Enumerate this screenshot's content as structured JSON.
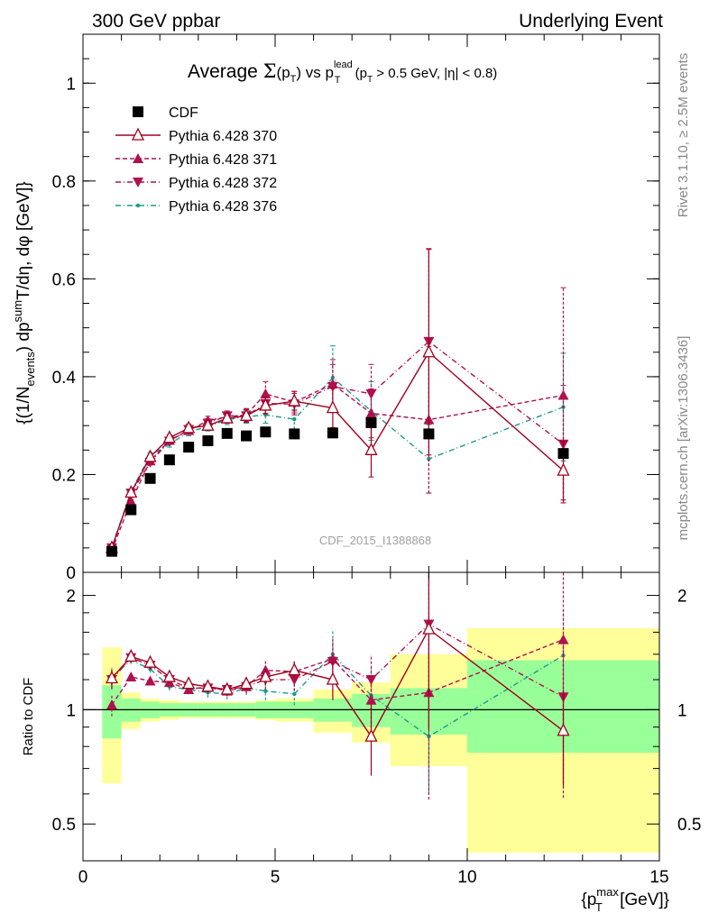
{
  "header": {
    "left": "300 GeV ppbar",
    "right": "Underlying Event"
  },
  "title": {
    "prefix": "Average ",
    "sigma": "Σ",
    "p_open": "(p",
    "T_sub": "T",
    "p_close": ")",
    "vs": " vs p",
    "lead_sup": "lead",
    "T_sub2": "T",
    "cut_open": " (p",
    "T_sub3": "T",
    "cut_rest": " > 0.5 GeV, |η| < 0.8)"
  },
  "watermark": "CDF_2015_I1388868",
  "side_top": "Rivet 3.1.10, ≥ 2.5M events",
  "side_bottom": "mcplots.cern.ch [arXiv:1306.3436]",
  "ylabel_main": "{(1/Nevents) dpsumT/dη, dφ [GeV]}",
  "ylabel_main_parts": {
    "open": "{(1/N",
    "events": "events",
    "close": ") dp",
    "sum": "sum",
    "T": "T",
    "rest": "/dη, dφ [GeV]}"
  },
  "ylabel_ratio": "Ratio to CDF",
  "xlabel_parts": {
    "open": "{p",
    "max": "max",
    "T": "T",
    "rest": " [GeV]}"
  },
  "legend": [
    {
      "label": "CDF",
      "marker": "square",
      "color": "#000000",
      "dash": ""
    },
    {
      "label": "Pythia 6.428 370",
      "marker": "triangle-open",
      "color": "#a0001e",
      "dash": ""
    },
    {
      "label": "Pythia 6.428 371",
      "marker": "triangle-up",
      "color": "#b0104e",
      "dash": "5,3"
    },
    {
      "label": "Pythia 6.428 372",
      "marker": "triangle-down",
      "color": "#b0104e",
      "dash": "6,3,1,3"
    },
    {
      "label": "Pythia 6.428 376",
      "marker": "dot",
      "color": "#1a9a8a",
      "dash": "6,3,1,3"
    }
  ],
  "chart_data": {
    "type": "line",
    "x": [
      0.75,
      1.25,
      1.75,
      2.25,
      2.75,
      3.25,
      3.75,
      4.25,
      4.75,
      5.5,
      6.5,
      7.5,
      9.0,
      12.5
    ],
    "xlim": [
      0,
      15
    ],
    "main_ylim": [
      0,
      1.1
    ],
    "main_yticks": [
      0,
      0.2,
      0.4,
      0.6,
      0.8,
      1
    ],
    "main_yticklabels": [
      "0",
      "0.2",
      "0.4",
      "0.6",
      "0.8",
      "1"
    ],
    "ratio_ylim": [
      0.4,
      2.3
    ],
    "ratio_log": true,
    "ratio_yticks": [
      0.5,
      1,
      2
    ],
    "ratio_yticklabels": [
      "0.5",
      "1",
      "2"
    ],
    "xticks": [
      0,
      5,
      10,
      15
    ],
    "xticklabels": [
      "0",
      "5",
      "10",
      "15"
    ],
    "data": {
      "name": "CDF",
      "values": [
        0.043,
        0.128,
        0.192,
        0.23,
        0.256,
        0.269,
        0.284,
        0.279,
        0.287,
        0.283,
        0.285,
        0.306,
        0.283,
        0.243
      ]
    },
    "series": [
      {
        "name": "Pythia 6.428 370",
        "values": [
          0.05,
          0.163,
          0.236,
          0.275,
          0.295,
          0.3,
          0.315,
          0.32,
          0.341,
          0.35,
          0.336,
          0.25,
          0.45,
          0.208
        ],
        "errors": [
          0.003,
          0.004,
          0.005,
          0.006,
          0.008,
          0.009,
          0.01,
          0.013,
          0.017,
          0.02,
          0.04,
          0.055,
          0.21,
          0.06
        ],
        "ratio": [
          1.21,
          1.38,
          1.33,
          1.22,
          1.17,
          1.15,
          1.13,
          1.17,
          1.22,
          1.27,
          1.2,
          0.85,
          1.63,
          0.88
        ]
      },
      {
        "name": "Pythia 6.428 371",
        "values": [
          0.045,
          0.145,
          0.228,
          0.27,
          0.29,
          0.31,
          0.318,
          0.322,
          0.365,
          0.348,
          0.385,
          0.325,
          0.312,
          0.362
        ],
        "errors": [
          0.003,
          0.004,
          0.005,
          0.006,
          0.008,
          0.009,
          0.01,
          0.013,
          0.025,
          0.022,
          0.05,
          0.05,
          0.15,
          0.22
        ],
        "ratio": [
          1.03,
          1.22,
          1.19,
          1.18,
          1.13,
          1.15,
          1.12,
          1.15,
          1.27,
          1.26,
          1.36,
          1.06,
          1.11,
          1.53
        ]
      },
      {
        "name": "Pythia 6.428 372",
        "values": [
          0.05,
          0.162,
          0.225,
          0.268,
          0.292,
          0.305,
          0.32,
          0.32,
          0.345,
          0.344,
          0.38,
          0.365,
          0.472,
          0.262
        ],
        "errors": [
          0.003,
          0.004,
          0.005,
          0.006,
          0.008,
          0.009,
          0.01,
          0.013,
          0.02,
          0.022,
          0.045,
          0.06,
          0.19,
          0.12
        ],
        "ratio": [
          1.2,
          1.37,
          1.31,
          1.2,
          1.14,
          1.14,
          1.13,
          1.15,
          1.2,
          1.2,
          1.34,
          1.2,
          1.68,
          1.08
        ]
      },
      {
        "name": "Pythia 6.428 376",
        "values": [
          0.052,
          0.165,
          0.24,
          0.262,
          0.287,
          0.298,
          0.312,
          0.318,
          0.322,
          0.313,
          0.398,
          0.33,
          0.232,
          0.338
        ],
        "errors": [
          0.003,
          0.004,
          0.005,
          0.006,
          0.008,
          0.009,
          0.01,
          0.013,
          0.017,
          0.02,
          0.065,
          0.06,
          0.07,
          0.11
        ],
        "ratio": [
          1.22,
          1.35,
          1.28,
          1.15,
          1.13,
          1.11,
          1.1,
          1.14,
          1.12,
          1.1,
          1.4,
          1.09,
          0.85,
          1.39
        ]
      }
    ],
    "bands": {
      "x_edges": [
        0.5,
        1.0,
        1.5,
        2.0,
        2.5,
        3.0,
        3.5,
        4.0,
        4.5,
        5.0,
        6.0,
        7.0,
        8.0,
        10.0,
        15.0
      ],
      "green_low": [
        0.84,
        0.93,
        0.95,
        0.96,
        0.96,
        0.96,
        0.96,
        0.96,
        0.95,
        0.95,
        0.93,
        0.9,
        0.86,
        0.77
      ],
      "green_high": [
        1.16,
        1.07,
        1.05,
        1.04,
        1.04,
        1.04,
        1.04,
        1.04,
        1.05,
        1.05,
        1.07,
        1.1,
        1.14,
        1.35
      ],
      "yellow_low": [
        0.64,
        0.89,
        0.93,
        0.94,
        0.95,
        0.95,
        0.95,
        0.95,
        0.94,
        0.93,
        0.87,
        0.82,
        0.71,
        0.42
      ],
      "yellow_high": [
        1.46,
        1.11,
        1.07,
        1.06,
        1.05,
        1.05,
        1.05,
        1.05,
        1.06,
        1.07,
        1.13,
        1.18,
        1.4,
        1.64
      ]
    },
    "colors": {
      "green": "#99ff99",
      "yellow": "#ffff99",
      "series_370": "#a0001e",
      "series_371": "#b0104e",
      "series_372": "#b0104e",
      "series_376": "#1a9a8a",
      "data": "#000000"
    }
  }
}
